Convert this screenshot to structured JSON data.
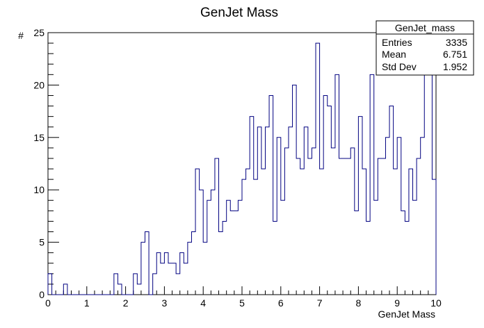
{
  "chart_data": {
    "type": "histogram",
    "title": "GenJet Mass",
    "xlabel": "GenJet Mass",
    "ylabel": "#",
    "xlim": [
      0,
      10
    ],
    "ylim": [
      0,
      25
    ],
    "bin_width": 0.1,
    "x_ticks": [
      "0",
      "1",
      "2",
      "3",
      "4",
      "5",
      "6",
      "7",
      "8",
      "9",
      "10"
    ],
    "y_ticks": [
      "0",
      "5",
      "10",
      "15",
      "20",
      "25"
    ],
    "values": [
      2,
      0,
      0,
      0,
      1,
      0,
      0,
      0,
      0,
      0,
      0,
      0,
      0,
      0,
      0,
      0,
      0,
      2,
      1,
      0,
      0,
      0,
      2,
      1,
      5,
      6,
      0,
      2,
      4,
      3,
      4,
      3,
      3,
      2,
      4,
      3,
      5,
      6,
      12,
      10,
      5,
      9,
      10,
      13,
      6,
      7,
      9,
      8,
      8,
      9,
      11,
      12,
      17,
      11,
      16,
      12,
      16,
      19,
      7,
      15,
      9,
      14,
      16,
      20,
      13,
      12,
      16,
      13,
      14,
      24,
      12,
      19,
      18,
      14,
      21,
      13,
      13,
      13,
      14,
      8,
      17,
      12,
      7,
      21,
      9,
      13,
      13,
      15,
      18,
      12,
      15,
      8,
      7,
      12,
      9,
      13,
      15,
      21,
      24,
      11
    ],
    "line_color": "#000080",
    "grid": false,
    "legend": "none"
  },
  "stats_box": {
    "name": "GenJet_mass",
    "rows": [
      {
        "label": "Entries",
        "value": "3335"
      },
      {
        "label": "Mean",
        "value": "6.751"
      },
      {
        "label": "Std Dev",
        "value": "1.952"
      }
    ],
    "placement": "top-right"
  }
}
